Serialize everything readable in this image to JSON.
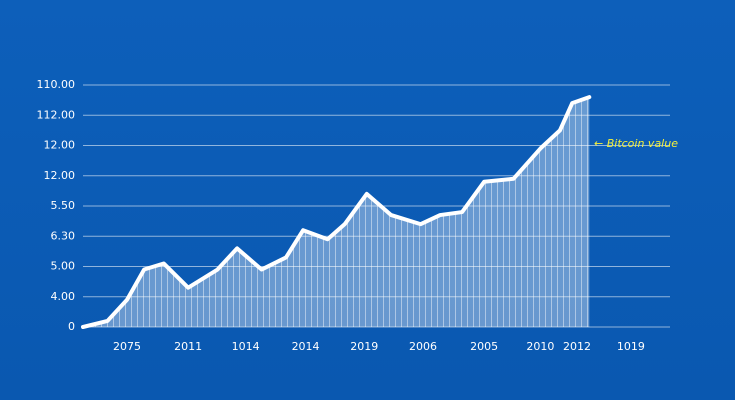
{
  "chart_data": {
    "type": "area",
    "annotation": "← Bitcoin value",
    "x": [
      0,
      1.0,
      1.8,
      2.5,
      3.3,
      4.3,
      5.5,
      6.3,
      7.3,
      8.3,
      9.0,
      10.0,
      10.7,
      11.6,
      12.6,
      13.8,
      14.6,
      15.5,
      16.4,
      17.6,
      18.7,
      19.5,
      20.0,
      20.7
    ],
    "values": [
      0,
      0.2,
      0.9,
      1.9,
      2.1,
      1.3,
      1.9,
      2.6,
      1.9,
      2.3,
      3.2,
      2.9,
      3.4,
      4.4,
      3.7,
      3.4,
      3.7,
      3.8,
      4.8,
      4.9,
      5.9,
      6.5,
      7.4,
      7.6
    ],
    "color": "#ffffff",
    "xlim": [
      0,
      24
    ],
    "xticks": [
      {
        "value": 1.8,
        "label": "2075"
      },
      {
        "value": 4.3,
        "label": "2011"
      },
      {
        "value": 6.65,
        "label": "1014"
      },
      {
        "value": 9.1,
        "label": "2014"
      },
      {
        "value": 11.5,
        "label": "2019"
      },
      {
        "value": 13.9,
        "label": "2006"
      },
      {
        "value": 16.4,
        "label": "2005"
      },
      {
        "value": 18.7,
        "label": "2010"
      },
      {
        "value": 20.2,
        "label": "2012"
      },
      {
        "value": 22.4,
        "label": "1019"
      }
    ],
    "ylim": [
      0,
      8
    ],
    "yticks": [
      0,
      {
        "value": 1,
        "label": "4.00"
      },
      {
        "value": 2,
        "label": "5.00"
      },
      {
        "value": 3,
        "label": "6.30"
      },
      {
        "value": 4,
        "label": "5.50"
      },
      {
        "value": 5,
        "label": "12.00"
      },
      {
        "value": 6,
        "label": "12.00"
      },
      {
        "value": 7,
        "label": "112.00"
      },
      {
        "value": 8,
        "label": "110.00"
      }
    ],
    "grid": true
  }
}
